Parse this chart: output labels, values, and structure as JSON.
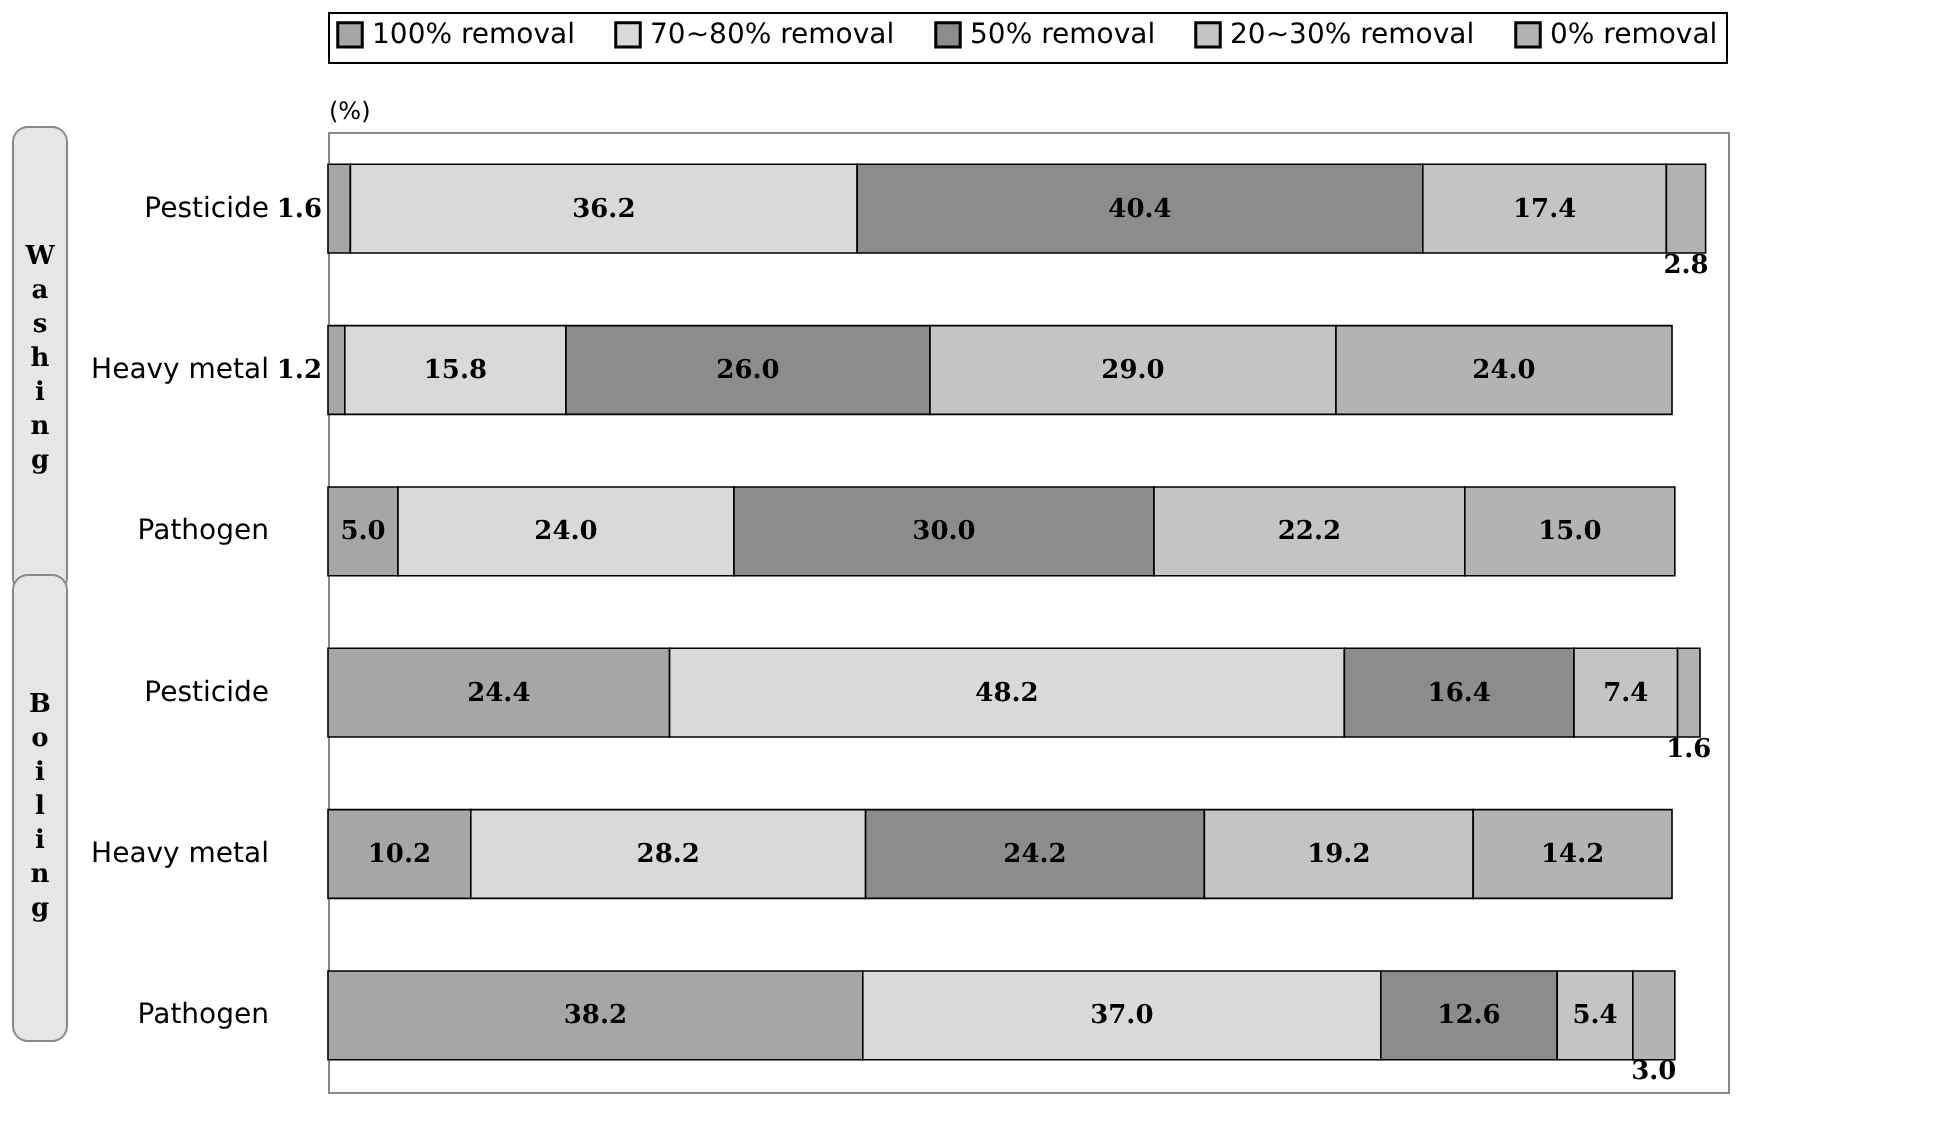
{
  "chart_data": {
    "type": "bar",
    "orientation": "horizontal",
    "stacked": true,
    "legend": "top",
    "tick_labels": "y",
    "xlabel": "(%)",
    "xlim": [
      0,
      100
    ],
    "categories": [
      "Pesticide",
      "Heavy metal",
      "Pathogen",
      "Pesticide",
      "Heavy metal",
      "Pathogen"
    ],
    "annotations": [
      "Washing",
      "Boiling"
    ],
    "series": [
      {
        "name": "100% removal",
        "color": "#a6a6a6",
        "values": [
          1.6,
          1.2,
          5.0,
          24.4,
          10.2,
          38.2
        ],
        "value_labels": [
          "1.6",
          "1.2",
          "5.0",
          "24.4",
          "10.2",
          "38.2"
        ]
      },
      {
        "name": "70~80% removal",
        "color": "#d9d9d9",
        "values": [
          36.2,
          15.8,
          24.0,
          48.2,
          28.2,
          37.0
        ],
        "value_labels": [
          "36.2",
          "15.8",
          "24.0",
          "48.2",
          "28.2",
          "37.0"
        ]
      },
      {
        "name": "50% removal",
        "color": "#8c8c8c",
        "values": [
          40.4,
          26.0,
          30.0,
          16.4,
          24.2,
          12.6
        ],
        "value_labels": [
          "40.4",
          "26.0",
          "30.0",
          "16.4",
          "24.2",
          "12.6"
        ]
      },
      {
        "name": "20~30% removal",
        "color": "#c4c4c4",
        "values": [
          17.4,
          29.0,
          22.2,
          7.4,
          19.2,
          5.4
        ],
        "value_labels": [
          "17.4",
          "29.0",
          "22.2",
          "7.4",
          "19.2",
          "5.4"
        ]
      },
      {
        "name": "0% removal",
        "color": "#b3b3b3",
        "values": [
          2.8,
          24.0,
          15.0,
          1.6,
          14.2,
          3.0
        ],
        "value_labels": [
          "2.8",
          "24.0",
          "15.0",
          "1.6",
          "14.2",
          "3.0"
        ]
      }
    ]
  }
}
